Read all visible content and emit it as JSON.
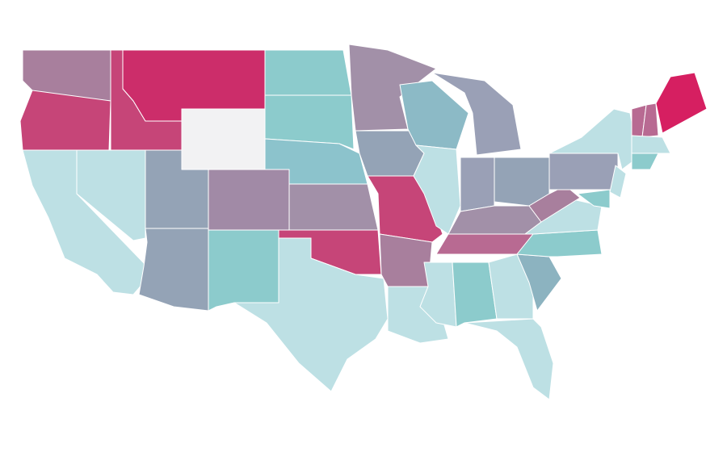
{
  "map": {
    "regions": [
      {
        "fill": "#a87f9d"
      },
      {
        "fill": "#c64578"
      },
      {
        "fill": "#bde0e4"
      },
      {
        "fill": "#bde0e4"
      },
      {
        "fill": "#c64578"
      },
      {
        "fill": "#cc2d6a"
      },
      {
        "fill": "#f2f2f3"
      },
      {
        "fill": "#94a3b6"
      },
      {
        "fill": "#94a3b6"
      },
      {
        "fill": "#a18aa6"
      },
      {
        "fill": "#8ccbcc"
      },
      {
        "fill": "#8ccbcc"
      },
      {
        "fill": "#8ccbcc"
      },
      {
        "fill": "#8cc3cc"
      },
      {
        "fill": "#a290a8"
      },
      {
        "fill": "#c64578"
      },
      {
        "fill": "#bde0e4"
      },
      {
        "fill": "#a290a8"
      },
      {
        "fill": "#94a3b6"
      },
      {
        "fill": "#c64578"
      },
      {
        "fill": "#a87f9d"
      },
      {
        "fill": "#bde0e4"
      },
      {
        "fill": "#8cbac6"
      },
      {
        "fill": "#bde0e4"
      },
      {
        "fill": "#9aa0b6"
      },
      {
        "fill": "#9aa0b6"
      },
      {
        "fill": "#94a3b6"
      },
      {
        "fill": "#a290a8"
      },
      {
        "fill": "#b86a92"
      },
      {
        "fill": "#bde0e4"
      },
      {
        "fill": "#8ccbcc"
      },
      {
        "fill": "#bde0e4"
      },
      {
        "fill": "#bde0e4"
      },
      {
        "fill": "#8cb3c0"
      },
      {
        "fill": "#8ccbcc"
      },
      {
        "fill": "#bde0e4"
      },
      {
        "fill": "#a87f9d"
      },
      {
        "fill": "#9aa0b6"
      },
      {
        "fill": "#bde0e4"
      },
      {
        "fill": "#8ccbcc"
      },
      {
        "fill": "#bde0e4"
      },
      {
        "fill": "#b86a92"
      },
      {
        "fill": "#b86a92"
      },
      {
        "fill": "#d61f61"
      },
      {
        "fill": "#bde0e4"
      },
      {
        "fill": "#8ccbcc"
      }
    ]
  }
}
